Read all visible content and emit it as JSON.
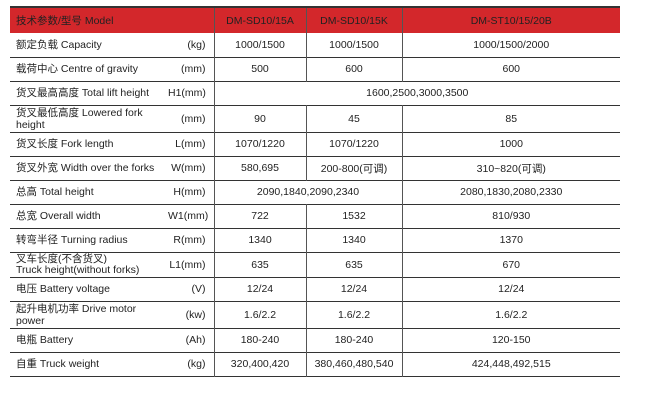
{
  "header": {
    "label": "技术参数/型号 Model",
    "models": [
      "DM-SD10/15A",
      "DM-SD10/15K",
      "DM-ST10/15/20B"
    ]
  },
  "colors": {
    "header_bg": "#d3272b"
  },
  "rows": [
    {
      "label": "额定负载  Capacity",
      "unit": "(kg)",
      "values": [
        "1000/1500",
        "1000/1500",
        "1000/1500/2000"
      ]
    },
    {
      "label": "载荷中心 Centre of gravity",
      "unit": "(mm)",
      "values": [
        "500",
        "600",
        "600"
      ]
    },
    {
      "label": "货叉最高高度 Total lift height",
      "unit": "H1(mm)",
      "values": [
        "1600,2500,3000,3500"
      ]
    },
    {
      "label": "货叉最低高度 Lowered fork height",
      "unit": "(mm)",
      "values": [
        "90",
        "45",
        "85"
      ]
    },
    {
      "label": "货叉长度 Fork length",
      "unit": "L(mm)",
      "values": [
        "1070/1220",
        "1070/1220",
        "1000"
      ]
    },
    {
      "label": "货叉外宽 Width over the forks",
      "unit": "W(mm)",
      "values": [
        "580,695",
        "200-800(可调)",
        "310~820(可调)"
      ]
    },
    {
      "label": "总高 Total height",
      "unit": "H(mm)",
      "values": [
        "2090,1840,2090,2340",
        "2080,1830,2080,2330"
      ]
    },
    {
      "label": "总宽 Overall width",
      "unit": "W1(mm)",
      "values": [
        "722",
        "1532",
        "810/930"
      ]
    },
    {
      "label": "转弯半径 Turning radius",
      "unit": "R(mm)",
      "values": [
        "1340",
        "1340",
        "1370"
      ]
    },
    {
      "label": "叉车长度(不含货叉)",
      "label2": "Truck height(without forks)",
      "unit": "L1(mm)",
      "values": [
        "635",
        "635",
        "670"
      ]
    },
    {
      "label": "电压 Battery voltage",
      "unit": "(V)",
      "values": [
        "12/24",
        "12/24",
        "12/24"
      ]
    },
    {
      "label": "起升电机功率 Drive motor power",
      "unit": "(kw)",
      "values": [
        "1.6/2.2",
        "1.6/2.2",
        "1.6/2.2"
      ]
    },
    {
      "label": "电瓶  Battery",
      "unit": "(Ah)",
      "values": [
        "180-240",
        "180-240",
        "120-150"
      ]
    },
    {
      "label": "自重 Truck weight",
      "unit": "(kg)",
      "values": [
        "320,400,420",
        "380,460,480,540",
        "424,448,492,515"
      ]
    }
  ]
}
